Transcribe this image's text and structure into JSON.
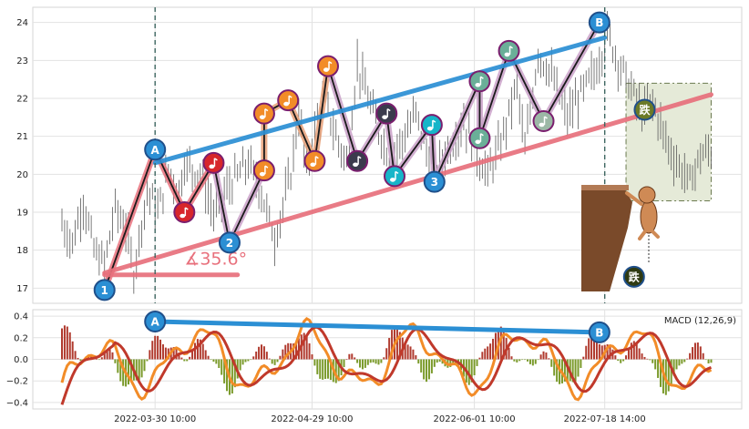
{
  "chart_data": [
    {
      "type": "candlestick",
      "panel": "price",
      "yticks": [
        "17",
        "18",
        "19",
        "20",
        "21",
        "22",
        "23",
        "24"
      ],
      "ylim": [
        16.6,
        24.4
      ],
      "grid": true,
      "price_path": [
        [
          0,
          18.7
        ],
        [
          4,
          18.2
        ],
        [
          8,
          19.3
        ],
        [
          12,
          18.0
        ],
        [
          16,
          17.6
        ],
        [
          20,
          19.1
        ],
        [
          24,
          18.6
        ],
        [
          27,
          17.4
        ],
        [
          32,
          19.6
        ],
        [
          36,
          19.0
        ],
        [
          40,
          20.1
        ],
        [
          44,
          19.6
        ],
        [
          46,
          20.3
        ],
        [
          52,
          20.0
        ],
        [
          57,
          19.0
        ],
        [
          63,
          19.7
        ],
        [
          70,
          20.3
        ],
        [
          75,
          19.5
        ],
        [
          80,
          18.3
        ],
        [
          86,
          20.0
        ],
        [
          89,
          21.6
        ],
        [
          92,
          20.1
        ],
        [
          96,
          21.5
        ],
        [
          99,
          21.9
        ],
        [
          103,
          21.0
        ],
        [
          107,
          20.3
        ],
        [
          111,
          22.9
        ],
        [
          115,
          22.0
        ],
        [
          119,
          21.2
        ],
        [
          123,
          20.4
        ],
        [
          128,
          20.9
        ],
        [
          133,
          21.6
        ],
        [
          137,
          20.6
        ],
        [
          141,
          20.1
        ],
        [
          146,
          20.8
        ],
        [
          151,
          21.4
        ],
        [
          156,
          20.5
        ],
        [
          160,
          20.0
        ],
        [
          165,
          20.8
        ],
        [
          171,
          22.4
        ],
        [
          174,
          20.6
        ],
        [
          179,
          23.2
        ],
        [
          184,
          22.6
        ],
        [
          190,
          21.5
        ],
        [
          195,
          22.1
        ],
        [
          201,
          22.8
        ],
        [
          205,
          23.7
        ],
        [
          209,
          23.0
        ],
        [
          213,
          22.4
        ],
        [
          218,
          21.6
        ],
        [
          222,
          21.9
        ],
        [
          227,
          20.9
        ],
        [
          231,
          20.3
        ],
        [
          236,
          19.8
        ],
        [
          240,
          20.5
        ],
        [
          244,
          20.6
        ]
      ],
      "trendlines": [
        {
          "name": "upper",
          "color": "#2b8fd4",
          "from": [
            35,
            20.3
          ],
          "to": [
            204,
            23.6
          ]
        },
        {
          "name": "lower",
          "color": "#e8707c",
          "from": [
            16,
            17.4
          ],
          "to": [
            244,
            22.1
          ]
        },
        {
          "name": "angle-base",
          "color": "#e8707c",
          "from": [
            16,
            17.35
          ],
          "to": [
            66,
            17.35
          ]
        }
      ],
      "angle_label": "∡35.6°",
      "vlines": [
        35,
        204
      ],
      "shaded_box": {
        "x": [
          212,
          244
        ],
        "y": [
          19.3,
          22.4
        ],
        "color": "#e5ead8"
      },
      "wave_markers": [
        {
          "label": "1",
          "x": 16,
          "y": 16.95,
          "color": "#2b8fd4",
          "kind": "text"
        },
        {
          "label": "A",
          "x": 35,
          "y": 20.65,
          "color": "#2b8fd4",
          "kind": "text"
        },
        {
          "label": "note",
          "x": 46,
          "y": 19.0,
          "color": "#d7262b",
          "kind": "note"
        },
        {
          "label": "note",
          "x": 57,
          "y": 20.3,
          "color": "#d7262b",
          "kind": "note"
        },
        {
          "label": "2",
          "x": 63,
          "y": 18.2,
          "color": "#2b8fd4",
          "kind": "text"
        },
        {
          "label": "note",
          "x": 76,
          "y": 20.1,
          "color": "#f28c28",
          "kind": "note"
        },
        {
          "label": "note",
          "x": 76,
          "y": 21.6,
          "color": "#f28c28",
          "kind": "note"
        },
        {
          "label": "note",
          "x": 85,
          "y": 21.95,
          "color": "#f28c28",
          "kind": "note"
        },
        {
          "label": "note",
          "x": 95,
          "y": 20.35,
          "color": "#f28c28",
          "kind": "note"
        },
        {
          "label": "note",
          "x": 100,
          "y": 22.85,
          "color": "#f28c28",
          "kind": "note"
        },
        {
          "label": "note",
          "x": 111,
          "y": 20.35,
          "color": "#3b3b4d",
          "kind": "note"
        },
        {
          "label": "note",
          "x": 122,
          "y": 21.6,
          "color": "#3b3b4d",
          "kind": "note"
        },
        {
          "label": "note",
          "x": 125,
          "y": 19.95,
          "color": "#17b5c9",
          "kind": "note"
        },
        {
          "label": "note",
          "x": 139,
          "y": 21.3,
          "color": "#17b5c9",
          "kind": "note"
        },
        {
          "label": "3",
          "x": 140,
          "y": 19.8,
          "color": "#2b8fd4",
          "kind": "text"
        },
        {
          "label": "note",
          "x": 157,
          "y": 22.45,
          "color": "#6aaf98",
          "kind": "note"
        },
        {
          "label": "note",
          "x": 157,
          "y": 20.95,
          "color": "#6aaf98",
          "kind": "note"
        },
        {
          "label": "note",
          "x": 168,
          "y": 23.25,
          "color": "#6aaf98",
          "kind": "note"
        },
        {
          "label": "note",
          "x": 181,
          "y": 21.4,
          "color": "#9cb8a6",
          "kind": "note"
        },
        {
          "label": "B",
          "x": 202,
          "y": 24.0,
          "color": "#2b8fd4",
          "kind": "text"
        },
        {
          "label": "跌",
          "x": 219,
          "y": 21.7,
          "color": "#6b7a28",
          "kind": "text"
        },
        {
          "label": "跌",
          "x": 215,
          "y": 17.3,
          "color": "#2f3a12",
          "kind": "text"
        }
      ]
    },
    {
      "type": "macd",
      "panel": "macd",
      "title": "MACD (12,26,9)",
      "yticks": [
        "0.4",
        "0.2",
        "0.0",
        "−0.2",
        "−0.4"
      ],
      "ylim": [
        -0.46,
        0.46
      ],
      "grid": true,
      "xticks": [
        "2022-03-30 10:00",
        "2022-04-29 10:00",
        "2022-06-01 10:00",
        "2022-07-18 14:00"
      ],
      "xtick_positions": [
        35,
        94,
        155,
        204
      ],
      "trendline": {
        "color": "#2b8fd4",
        "from": [
          35,
          0.35
        ],
        "to": [
          202,
          0.25
        ]
      },
      "markers": [
        {
          "label": "A",
          "x": 35,
          "y": 0.35,
          "color": "#2b8fd4"
        },
        {
          "label": "B",
          "x": 202,
          "y": 0.25,
          "color": "#2b8fd4"
        }
      ]
    }
  ]
}
